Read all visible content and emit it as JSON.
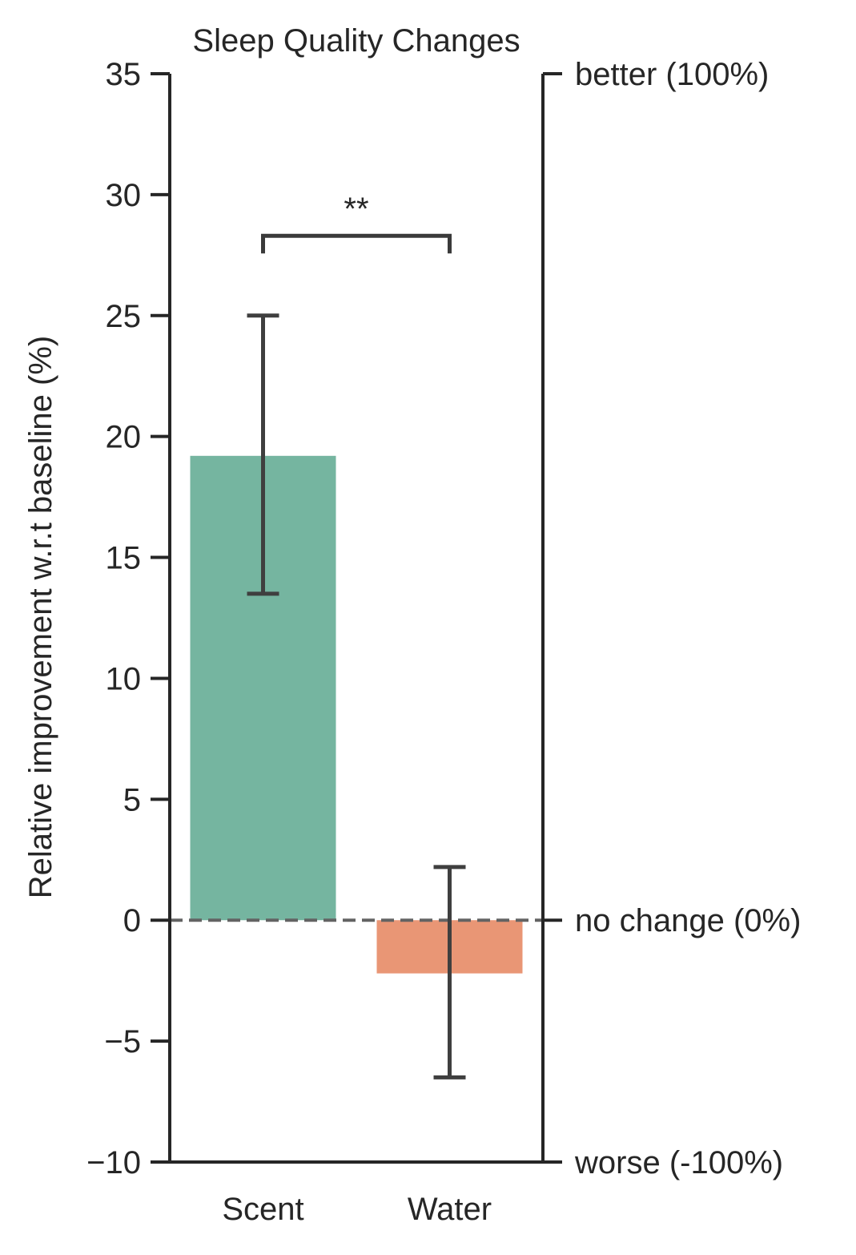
{
  "chart_data": {
    "type": "bar",
    "title": "Sleep Quality Changes",
    "xlabel": "",
    "ylabel": "Relative improvement w.r.t baseline (%)",
    "ylim": [
      -10,
      35
    ],
    "yticks": [
      35,
      30,
      25,
      20,
      15,
      10,
      5,
      0,
      -5,
      -10
    ],
    "ytick_labels": [
      "35",
      "30",
      "25",
      "20",
      "15",
      "10",
      "5",
      "0",
      "−5",
      "−10"
    ],
    "categories": [
      "Scent",
      "Water"
    ],
    "values": [
      19.2,
      -2.2
    ],
    "error_low": [
      13.5,
      -6.5
    ],
    "error_high": [
      25.0,
      2.2
    ],
    "colors": [
      "#75b5a0",
      "#e99675"
    ],
    "reference_line": {
      "y": 0,
      "style": "dashed",
      "color": "#636363"
    },
    "right_axis": {
      "ticks": [
        {
          "y": 35,
          "label": "better (100%)"
        },
        {
          "y": 0,
          "label": "no change (0%)"
        },
        {
          "y": -10,
          "label": "worse (-100%)"
        }
      ]
    },
    "significance": {
      "from": "Scent",
      "to": "Water",
      "y": 28.3,
      "label": "**"
    },
    "grid": false
  }
}
